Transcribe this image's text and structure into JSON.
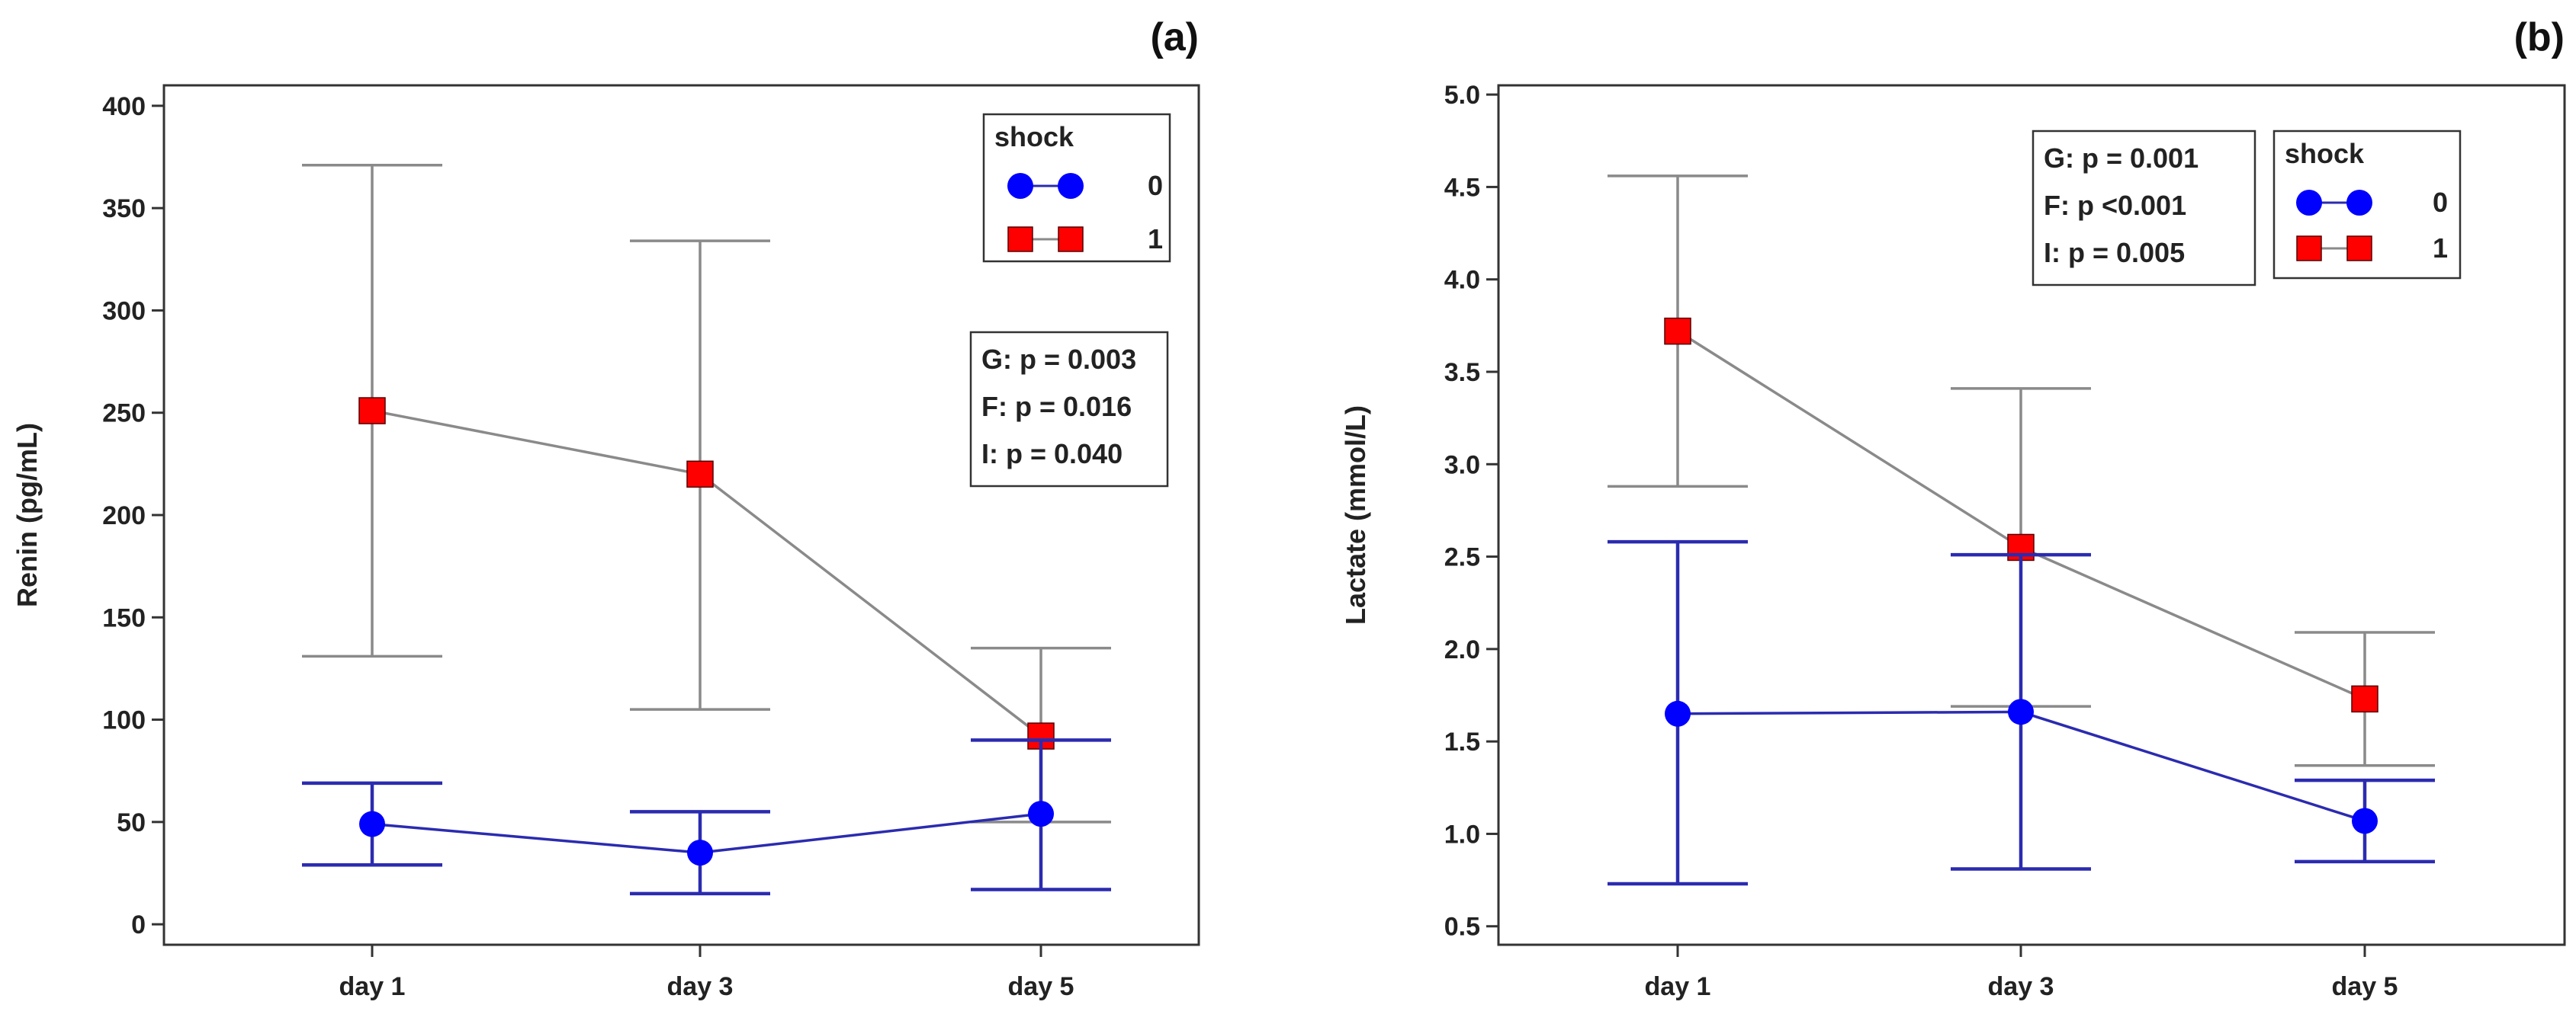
{
  "chart_data": [
    {
      "type": "line",
      "panel_label": "(a)",
      "ylabel": "Renin (pg/mL)",
      "xlabel": "",
      "categories": [
        "day 1",
        "day 3",
        "day 5"
      ],
      "ylim": [
        -10,
        410
      ],
      "yticks": [
        0,
        50,
        100,
        150,
        200,
        250,
        300,
        350,
        400
      ],
      "ytick_labels": [
        "0",
        "50",
        "100",
        "150",
        "200",
        "250",
        "300",
        "350",
        "400"
      ],
      "grid": false,
      "legend": {
        "title": "shock",
        "placement": "top-right",
        "entries": [
          {
            "label": "0",
            "marker": "circle",
            "color": "#0000ff"
          },
          {
            "label": "1",
            "marker": "square",
            "color": "#ff0000"
          }
        ]
      },
      "stats": {
        "placement": "right",
        "lines": [
          "G: p = 0.003",
          "F: p = 0.016",
          "I: p = 0.040"
        ]
      },
      "series": [
        {
          "name": "0",
          "marker": "circle",
          "color": "#0000ff",
          "line_color": "#2b2bb0",
          "values": [
            49,
            35,
            54
          ],
          "err_low": [
            29,
            15,
            17
          ],
          "err_high": [
            69,
            55,
            90
          ]
        },
        {
          "name": "1",
          "marker": "square",
          "color": "#ff0000",
          "line_color": "#8a8a8a",
          "values": [
            251,
            220,
            92
          ],
          "err_low": [
            131,
            105,
            50
          ],
          "err_high": [
            371,
            334,
            135
          ]
        }
      ]
    },
    {
      "type": "line",
      "panel_label": "(b)",
      "ylabel": "Lactate (mmol/L)",
      "xlabel": "",
      "categories": [
        "day 1",
        "day 3",
        "day 5"
      ],
      "ylim": [
        0.4,
        5.05
      ],
      "yticks": [
        0.5,
        1.0,
        1.5,
        2.0,
        2.5,
        3.0,
        3.5,
        4.0,
        4.5,
        5.0
      ],
      "ytick_labels": [
        "0.5",
        "1.0",
        "1.5",
        "2.0",
        "2.5",
        "3.0",
        "3.5",
        "4.0",
        "4.5",
        "5.0"
      ],
      "grid": false,
      "legend": {
        "title": "shock",
        "placement": "top-right",
        "entries": [
          {
            "label": "0",
            "marker": "circle",
            "color": "#0000ff"
          },
          {
            "label": "1",
            "marker": "square",
            "color": "#ff0000"
          }
        ]
      },
      "stats": {
        "placement": "top-center",
        "lines": [
          "G: p = 0.001",
          "F: p <0.001",
          "I: p = 0.005"
        ]
      },
      "series": [
        {
          "name": "0",
          "marker": "circle",
          "color": "#0000ff",
          "line_color": "#2b2bb0",
          "values": [
            1.65,
            1.66,
            1.07
          ],
          "err_low": [
            0.73,
            0.81,
            0.85
          ],
          "err_high": [
            2.58,
            2.51,
            1.29
          ]
        },
        {
          "name": "1",
          "marker": "square",
          "color": "#ff0000",
          "line_color": "#8a8a8a",
          "values": [
            3.72,
            2.55,
            1.73
          ],
          "err_low": [
            2.88,
            1.69,
            1.37
          ],
          "err_high": [
            4.56,
            3.41,
            2.09
          ]
        }
      ]
    }
  ]
}
